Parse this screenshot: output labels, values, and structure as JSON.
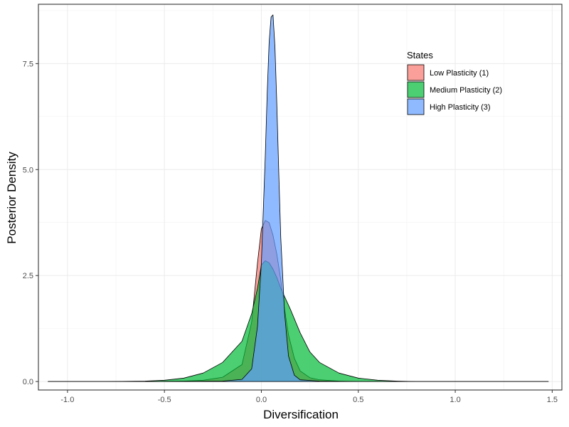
{
  "chart_data": {
    "type": "area",
    "xlabel": "Diversification",
    "ylabel": "Posterior Density",
    "xlim": [
      -1.15,
      1.55
    ],
    "ylim": [
      -0.2,
      8.9
    ],
    "x_ticks": [
      -1.0,
      -0.5,
      0.0,
      0.5,
      1.0,
      1.5
    ],
    "x_tick_labels": [
      "-1.0",
      "-0.5",
      "0.0",
      "0.5",
      "1.0",
      "1.5"
    ],
    "y_ticks": [
      0.0,
      2.5,
      5.0,
      7.5
    ],
    "y_tick_labels": [
      "0.0",
      "2.5",
      "5.0",
      "7.5"
    ],
    "grid": true,
    "legend": {
      "title": "States",
      "placement": "top-right"
    },
    "series": [
      {
        "name": "Low Plasticity (1)",
        "color": "#F8766D",
        "x": [
          -1.1,
          -0.8,
          -0.6,
          -0.4,
          -0.3,
          -0.2,
          -0.1,
          -0.05,
          -0.02,
          0.0,
          0.02,
          0.04,
          0.06,
          0.08,
          0.1,
          0.12,
          0.14,
          0.17,
          0.2,
          0.25,
          0.3,
          0.4,
          0.5,
          0.6,
          0.8,
          1.0,
          1.48
        ],
        "y": [
          0.0,
          0.0,
          0.0,
          0.01,
          0.03,
          0.1,
          0.4,
          1.4,
          2.8,
          3.6,
          3.8,
          3.75,
          3.45,
          3.0,
          2.4,
          1.7,
          1.1,
          0.55,
          0.25,
          0.09,
          0.04,
          0.01,
          0.0,
          0.0,
          0.0,
          0.0,
          0.0
        ]
      },
      {
        "name": "Medium Plasticity (2)",
        "color": "#00BA38",
        "x": [
          -1.1,
          -0.8,
          -0.6,
          -0.5,
          -0.4,
          -0.3,
          -0.2,
          -0.1,
          -0.05,
          -0.02,
          0.0,
          0.02,
          0.04,
          0.06,
          0.08,
          0.1,
          0.15,
          0.2,
          0.25,
          0.3,
          0.4,
          0.5,
          0.6,
          0.7,
          0.8,
          1.0,
          1.48
        ],
        "y": [
          0.0,
          0.0,
          0.01,
          0.03,
          0.08,
          0.2,
          0.45,
          0.95,
          1.6,
          2.2,
          2.75,
          2.85,
          2.8,
          2.65,
          2.45,
          2.2,
          1.7,
          1.15,
          0.7,
          0.45,
          0.2,
          0.08,
          0.03,
          0.01,
          0.0,
          0.0,
          0.0
        ]
      },
      {
        "name": "High Plasticity (3)",
        "color": "#619CFF",
        "x": [
          -1.1,
          -0.5,
          -0.2,
          -0.1,
          -0.05,
          -0.02,
          0.0,
          0.02,
          0.03,
          0.04,
          0.05,
          0.06,
          0.07,
          0.08,
          0.09,
          0.1,
          0.12,
          0.14,
          0.17,
          0.2,
          0.3,
          0.5,
          1.0,
          1.48
        ],
        "y": [
          0.0,
          0.0,
          0.01,
          0.05,
          0.3,
          1.3,
          2.8,
          5.3,
          6.8,
          8.0,
          8.6,
          8.65,
          7.9,
          6.5,
          4.9,
          3.4,
          1.6,
          0.6,
          0.15,
          0.04,
          0.01,
          0.0,
          0.0,
          0.0
        ]
      }
    ]
  }
}
